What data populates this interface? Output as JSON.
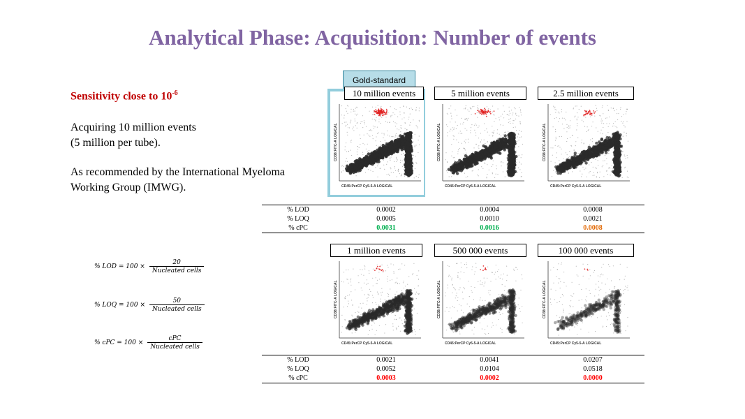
{
  "title": "Analytical Phase: Acquisition: Number of events",
  "left": {
    "sensitivity_prefix": "Sensitivity close to 10",
    "sensitivity_exp": "-6",
    "para1_line1": "Acquiring 10 million events",
    "para1_line2": "(5 million per tube).",
    "para2_line1": "As recommended by the International Myeloma",
    "para2_line2": "Working Group (IMWG)."
  },
  "gold_standard_label": "Gold-standard",
  "plot_axes": {
    "y": "CD38:FITC-A LOGICAL",
    "x": "CD45:PerCP Cy5-5-A LOGICAL"
  },
  "plots_top": [
    {
      "label": "10 million events"
    },
    {
      "label": "5 million events"
    },
    {
      "label": "2.5 million events"
    }
  ],
  "plots_bottom": [
    {
      "label": "1 million events"
    },
    {
      "label": "500 000 events"
    },
    {
      "label": "100 000 events"
    }
  ],
  "table_top": {
    "rows": [
      {
        "label": "% LOD",
        "values": [
          "0.0002",
          "0.0004",
          "0.0008"
        ]
      },
      {
        "label": "% LOQ",
        "values": [
          "0.0005",
          "0.0010",
          "0.0021"
        ]
      },
      {
        "label": "% cPC",
        "values": [
          "0.0031",
          "0.0016",
          "0.0008"
        ]
      }
    ]
  },
  "table_bottom": {
    "rows": [
      {
        "label": "% LOD",
        "values": [
          "0.0021",
          "0.0041",
          "0.0207"
        ]
      },
      {
        "label": "% LOQ",
        "values": [
          "0.0052",
          "0.0104",
          "0.0518"
        ]
      },
      {
        "label": "% cPC",
        "values": [
          "0.0003",
          "0.0002",
          "0.0000"
        ]
      }
    ]
  },
  "colors": {
    "title": "#8064a2",
    "sensitivity": "#c00000",
    "cpc_good": "#00b050",
    "cpc_border": "#e36c09",
    "cpc_bad": "#ff0000",
    "gold_fill": "#b7dde8",
    "gold_frame": "#92cddc"
  },
  "formulas": [
    {
      "lhs": "% LOD = 100 ×",
      "num": "20",
      "den": "Nucleated cells"
    },
    {
      "lhs": "% LOQ = 100 ×",
      "num": "50",
      "den": "Nucleated cells"
    },
    {
      "lhs": "% cPC = 100 ×",
      "num": "cPC",
      "den": "Nucleated cells"
    }
  ]
}
